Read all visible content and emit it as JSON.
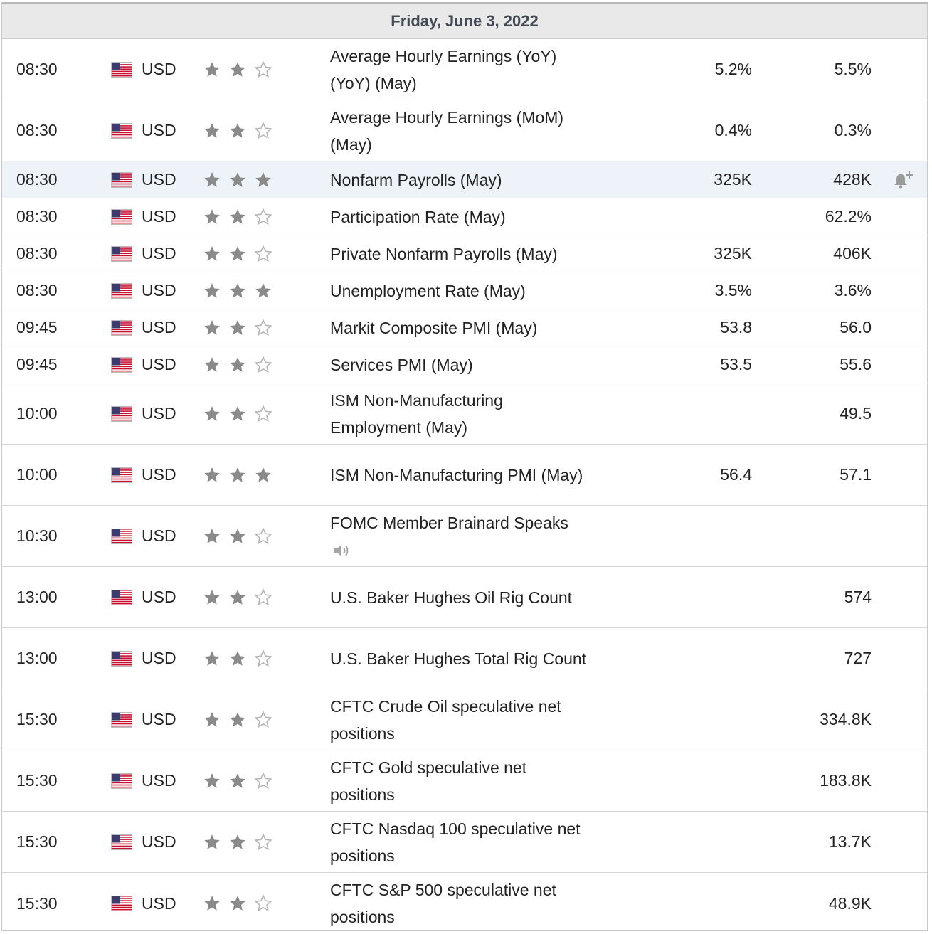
{
  "header": {
    "date": "Friday, June 3, 2022"
  },
  "colors": {
    "star_filled": "#8a8a8a",
    "star_empty": "#b3b3b3",
    "highlight_row": "#eef3f9"
  },
  "icons": {
    "flag": "us-flag-icon",
    "star": "star-icon",
    "alert": "bell-plus-icon",
    "speaker": "speaker-icon"
  },
  "events": [
    {
      "time": "08:30",
      "currency": "USD",
      "importance": 2,
      "event": "Average Hourly Earnings (YoY) (YoY) (May)",
      "forecast": "5.2%",
      "previous": "5.5%"
    },
    {
      "time": "08:30",
      "currency": "USD",
      "importance": 2,
      "event": "Average Hourly Earnings (MoM) (May)",
      "forecast": "0.4%",
      "previous": "0.3%"
    },
    {
      "time": "08:30",
      "currency": "USD",
      "importance": 3,
      "event": "Nonfarm Payrolls (May)",
      "forecast": "325K",
      "previous": "428K",
      "highlighted": true
    },
    {
      "time": "08:30",
      "currency": "USD",
      "importance": 2,
      "event": "Participation Rate (May)",
      "forecast": "",
      "previous": "62.2%"
    },
    {
      "time": "08:30",
      "currency": "USD",
      "importance": 2,
      "event": "Private Nonfarm Payrolls (May)",
      "forecast": "325K",
      "previous": "406K"
    },
    {
      "time": "08:30",
      "currency": "USD",
      "importance": 3,
      "event": "Unemployment Rate (May)",
      "forecast": "3.5%",
      "previous": "3.6%"
    },
    {
      "time": "09:45",
      "currency": "USD",
      "importance": 2,
      "event": "Markit Composite PMI (May)",
      "forecast": "53.8",
      "previous": "56.0"
    },
    {
      "time": "09:45",
      "currency": "USD",
      "importance": 2,
      "event": "Services PMI (May)",
      "forecast": "53.5",
      "previous": "55.6"
    },
    {
      "time": "10:00",
      "currency": "USD",
      "importance": 2,
      "event": "ISM Non-Manufacturing Employment (May)",
      "forecast": "",
      "previous": "49.5"
    },
    {
      "time": "10:00",
      "currency": "USD",
      "importance": 3,
      "event": "ISM Non-Manufacturing PMI (May)",
      "forecast": "56.4",
      "previous": "57.1"
    },
    {
      "time": "10:30",
      "currency": "USD",
      "importance": 2,
      "event": "FOMC Member Brainard Speaks",
      "forecast": "",
      "previous": "",
      "speech": true
    },
    {
      "time": "13:00",
      "currency": "USD",
      "importance": 2,
      "event": "U.S. Baker Hughes Oil Rig Count",
      "forecast": "",
      "previous": "574"
    },
    {
      "time": "13:00",
      "currency": "USD",
      "importance": 2,
      "event": "U.S. Baker Hughes Total Rig Count",
      "forecast": "",
      "previous": "727"
    },
    {
      "time": "15:30",
      "currency": "USD",
      "importance": 2,
      "event": "CFTC Crude Oil speculative net positions",
      "forecast": "",
      "previous": "334.8K"
    },
    {
      "time": "15:30",
      "currency": "USD",
      "importance": 2,
      "event": "CFTC Gold speculative net positions",
      "forecast": "",
      "previous": "183.8K"
    },
    {
      "time": "15:30",
      "currency": "USD",
      "importance": 2,
      "event": "CFTC Nasdaq 100 speculative net positions",
      "forecast": "",
      "previous": "13.7K"
    },
    {
      "time": "15:30",
      "currency": "USD",
      "importance": 2,
      "event": "CFTC S&P 500 speculative net positions",
      "forecast": "",
      "previous": "48.9K"
    }
  ]
}
